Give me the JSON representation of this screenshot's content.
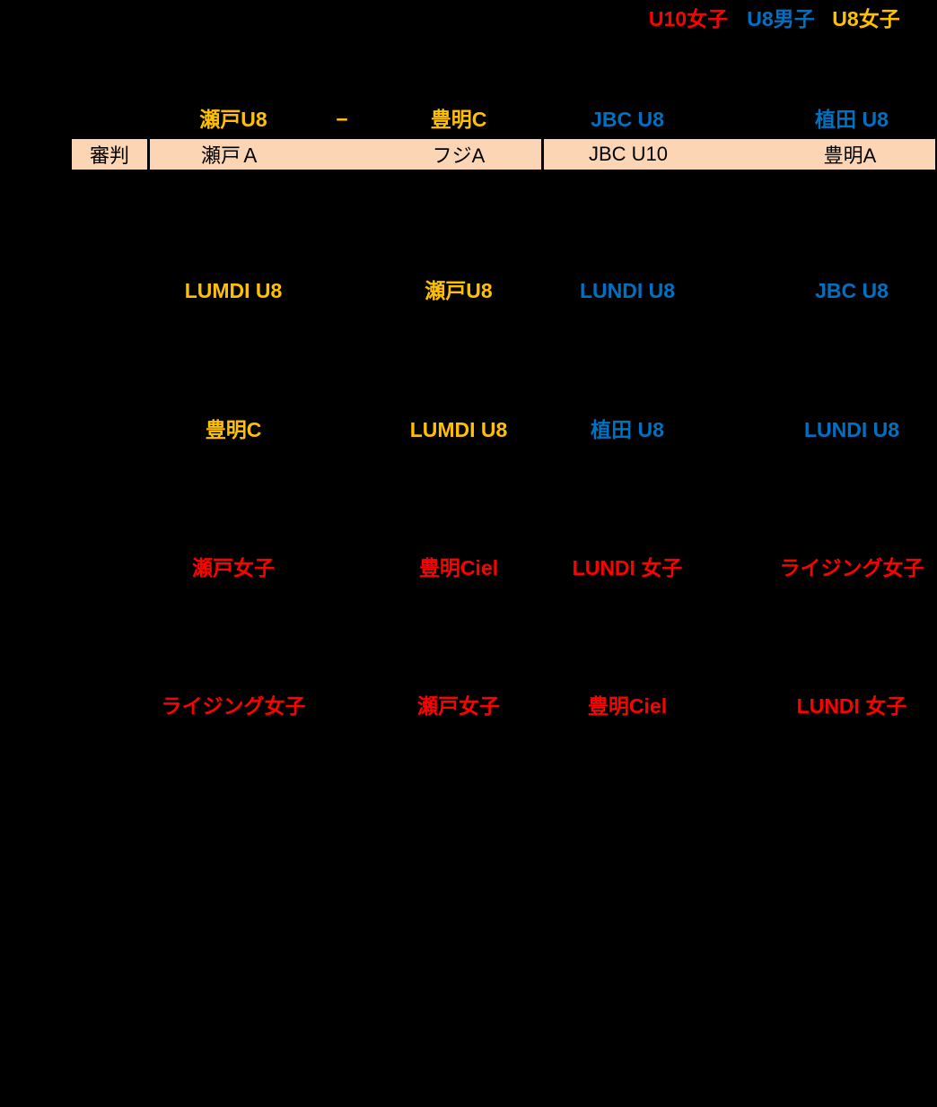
{
  "colors": {
    "background": "#000000",
    "yellow": "#FFC000",
    "blue": "#0070C0",
    "red": "#FF0000",
    "referee_fill": "#FCD5B4",
    "referee_text": "#000000"
  },
  "legend": {
    "items": [
      {
        "label": "U10女子",
        "color": "#FF0000"
      },
      {
        "label": "U8男子",
        "color": "#0070C0"
      },
      {
        "label": "U8女子",
        "color": "#FFC000"
      }
    ]
  },
  "header": {
    "match_home": {
      "text": "瀬戸U8",
      "color": "#FFC000"
    },
    "match_separator": {
      "text": "−",
      "color": "#FFC000"
    },
    "match_away": {
      "text": "豊明C",
      "color": "#FFC000"
    },
    "col3": {
      "text": "JBC U8",
      "color": "#0070C0"
    },
    "col4": {
      "text": "植田 U8",
      "color": "#0070C0"
    }
  },
  "referee_row": {
    "label": "審判",
    "cells": [
      "瀬戸Ａ",
      "フジA",
      "JBC U10",
      "豊明A"
    ]
  },
  "rows": [
    {
      "cells": [
        {
          "text": "LUMDI U8",
          "color": "#FFC000"
        },
        {
          "text": "瀬戸U8",
          "color": "#FFC000"
        },
        {
          "text": "LUNDI U8",
          "color": "#0070C0"
        },
        {
          "text": "JBC U8",
          "color": "#0070C0"
        }
      ]
    },
    {
      "cells": [
        {
          "text": "豊明C",
          "color": "#FFC000"
        },
        {
          "text": "LUMDI U8",
          "color": "#FFC000"
        },
        {
          "text": "植田 U8",
          "color": "#0070C0"
        },
        {
          "text": "LUNDI U8",
          "color": "#0070C0"
        }
      ]
    },
    {
      "cells": [
        {
          "text": "瀬戸女子",
          "color": "#FF0000"
        },
        {
          "text": "豊明Ciel",
          "color": "#FF0000"
        },
        {
          "text": "LUNDI 女子",
          "color": "#FF0000"
        },
        {
          "text": "ライジング女子",
          "color": "#FF0000"
        }
      ]
    },
    {
      "cells": [
        {
          "text": "ライジング女子",
          "color": "#FF0000"
        },
        {
          "text": "瀬戸女子",
          "color": "#FF0000"
        },
        {
          "text": "豊明Ciel",
          "color": "#FF0000"
        },
        {
          "text": "LUNDI 女子",
          "color": "#FF0000"
        }
      ]
    }
  ]
}
